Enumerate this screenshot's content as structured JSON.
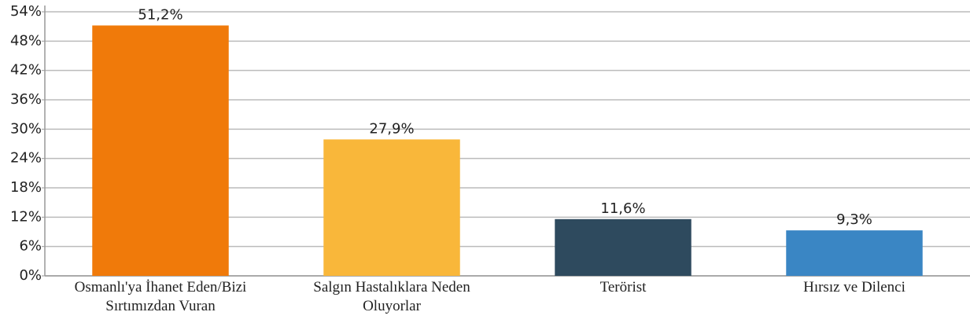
{
  "chart_data": {
    "type": "bar",
    "categories": [
      "Osmanlı'ya İhanet Eden/Bizi Sırtımızdan Vuran",
      "Salgın Hastalıklara Neden Oluyorlar",
      "Terörist",
      "Hırsız ve Dilenci"
    ],
    "values": [
      51.2,
      27.9,
      11.6,
      9.3
    ],
    "value_labels": [
      "51,2%",
      "27,9%",
      "11,6%",
      "9,3%"
    ],
    "colors": [
      "#f07a0a",
      "#f9b73a",
      "#2e4a5e",
      "#3a86c4"
    ],
    "ylim": [
      0,
      54
    ],
    "yticks": [
      {
        "value": 0,
        "label": "0%"
      },
      {
        "value": 6,
        "label": "6%"
      },
      {
        "value": 12,
        "label": "12%"
      },
      {
        "value": 18,
        "label": "18%"
      },
      {
        "value": 24,
        "label": "24%"
      },
      {
        "value": 30,
        "label": "30%"
      },
      {
        "value": 36,
        "label": "36%"
      },
      {
        "value": 42,
        "label": "42%"
      },
      {
        "value": 48,
        "label": "48%"
      },
      {
        "value": 54,
        "label": "54%"
      }
    ],
    "grid": true
  }
}
